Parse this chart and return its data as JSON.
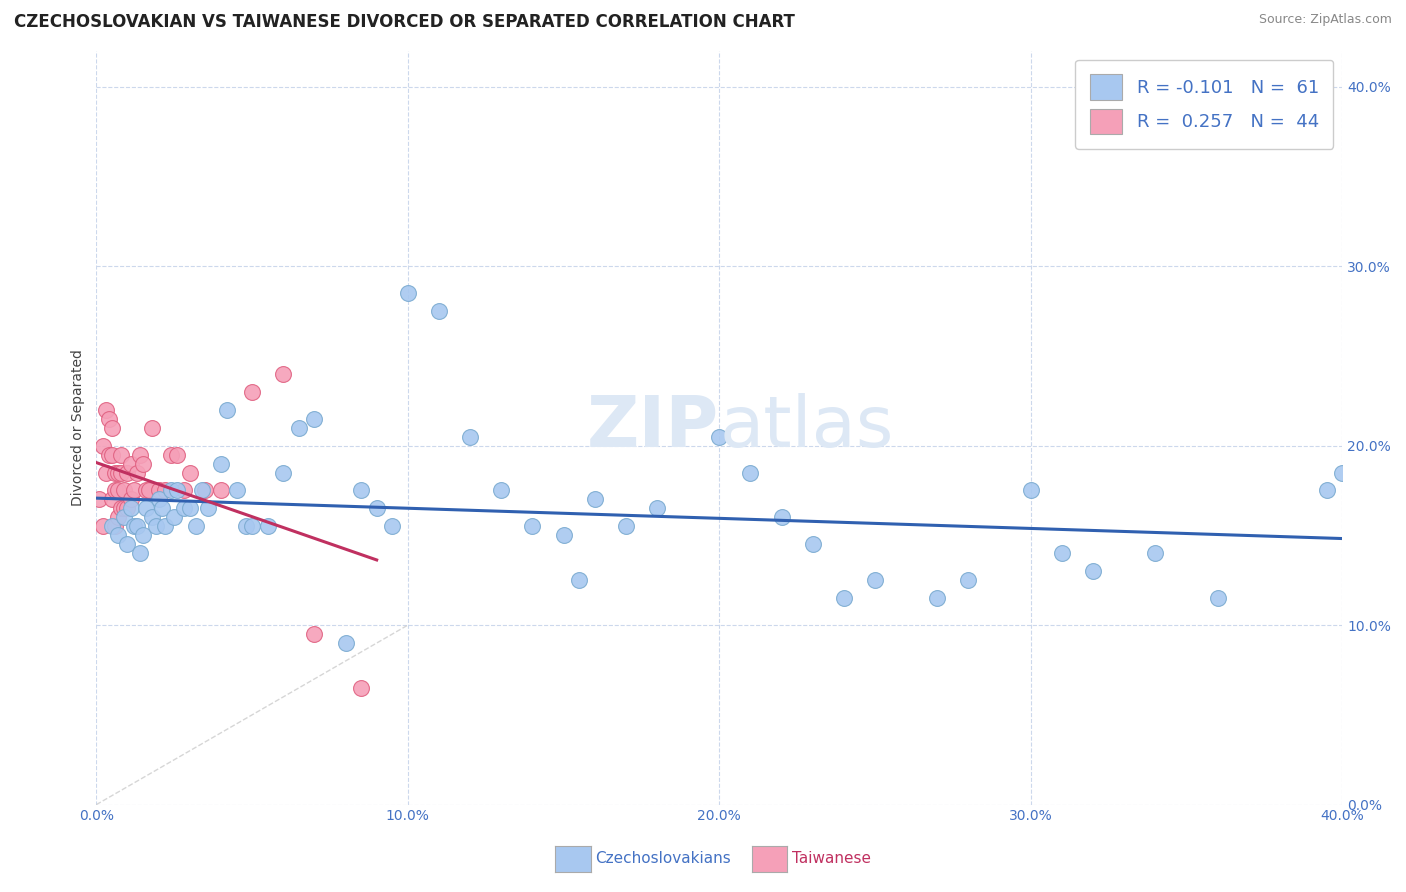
{
  "title": "CZECHOSLOVAKIAN VS TAIWANESE DIVORCED OR SEPARATED CORRELATION CHART",
  "source": "Source: ZipAtlas.com",
  "ylabel": "Divorced or Separated",
  "xlabel_label_czech": "Czechoslovakians",
  "xlabel_label_taiwan": "Taiwanese",
  "legend_r_czech": "R = -0.101",
  "legend_n_czech": "N =  61",
  "legend_r_taiwan": "R =  0.257",
  "legend_n_taiwan": "N =  44",
  "color_czech": "#a8c8f0",
  "color_taiwan": "#f5a0b8",
  "color_czech_border": "#7aaad0",
  "color_taiwan_border": "#e06080",
  "color_czech_line": "#3060b0",
  "color_taiwan_line": "#c03060",
  "color_diagonal": "#cccccc",
  "xmin": 0.0,
  "xmax": 0.4,
  "ymin": 0.0,
  "ymax": 0.42,
  "yticks": [
    0.0,
    0.1,
    0.2,
    0.3,
    0.4
  ],
  "xticks": [
    0.0,
    0.1,
    0.2,
    0.3,
    0.4
  ],
  "czech_x": [
    0.005,
    0.007,
    0.009,
    0.01,
    0.011,
    0.012,
    0.013,
    0.014,
    0.015,
    0.016,
    0.018,
    0.019,
    0.02,
    0.021,
    0.022,
    0.024,
    0.025,
    0.026,
    0.028,
    0.03,
    0.032,
    0.034,
    0.036,
    0.04,
    0.042,
    0.045,
    0.048,
    0.05,
    0.055,
    0.06,
    0.065,
    0.07,
    0.08,
    0.085,
    0.09,
    0.095,
    0.1,
    0.11,
    0.12,
    0.13,
    0.14,
    0.15,
    0.155,
    0.16,
    0.17,
    0.18,
    0.2,
    0.21,
    0.22,
    0.23,
    0.24,
    0.25,
    0.27,
    0.28,
    0.3,
    0.31,
    0.32,
    0.34,
    0.36,
    0.395,
    0.4
  ],
  "czech_y": [
    0.155,
    0.15,
    0.16,
    0.145,
    0.165,
    0.155,
    0.155,
    0.14,
    0.15,
    0.165,
    0.16,
    0.155,
    0.17,
    0.165,
    0.155,
    0.175,
    0.16,
    0.175,
    0.165,
    0.165,
    0.155,
    0.175,
    0.165,
    0.19,
    0.22,
    0.175,
    0.155,
    0.155,
    0.155,
    0.185,
    0.21,
    0.215,
    0.09,
    0.175,
    0.165,
    0.155,
    0.285,
    0.275,
    0.205,
    0.175,
    0.155,
    0.15,
    0.125,
    0.17,
    0.155,
    0.165,
    0.205,
    0.185,
    0.16,
    0.145,
    0.115,
    0.125,
    0.115,
    0.125,
    0.175,
    0.14,
    0.13,
    0.14,
    0.115,
    0.175,
    0.185
  ],
  "taiwan_x": [
    0.001,
    0.002,
    0.002,
    0.003,
    0.003,
    0.004,
    0.004,
    0.005,
    0.005,
    0.005,
    0.006,
    0.006,
    0.006,
    0.007,
    0.007,
    0.007,
    0.008,
    0.008,
    0.008,
    0.009,
    0.009,
    0.01,
    0.01,
    0.011,
    0.011,
    0.012,
    0.013,
    0.014,
    0.015,
    0.016,
    0.017,
    0.018,
    0.02,
    0.022,
    0.024,
    0.026,
    0.028,
    0.03,
    0.035,
    0.04,
    0.05,
    0.06,
    0.07,
    0.085
  ],
  "taiwan_y": [
    0.17,
    0.155,
    0.2,
    0.185,
    0.22,
    0.195,
    0.215,
    0.17,
    0.195,
    0.21,
    0.155,
    0.175,
    0.185,
    0.175,
    0.16,
    0.185,
    0.165,
    0.185,
    0.195,
    0.165,
    0.175,
    0.165,
    0.185,
    0.17,
    0.19,
    0.175,
    0.185,
    0.195,
    0.19,
    0.175,
    0.175,
    0.21,
    0.175,
    0.175,
    0.195,
    0.195,
    0.175,
    0.185,
    0.175,
    0.175,
    0.23,
    0.24,
    0.095,
    0.065
  ],
  "background_color": "#ffffff",
  "grid_color": "#ccd8ec",
  "watermark_zip": "ZIP",
  "watermark_atlas": "atlas",
  "title_fontsize": 12,
  "axis_label_fontsize": 10,
  "tick_fontsize": 10,
  "legend_fontsize": 13,
  "source_fontsize": 9
}
